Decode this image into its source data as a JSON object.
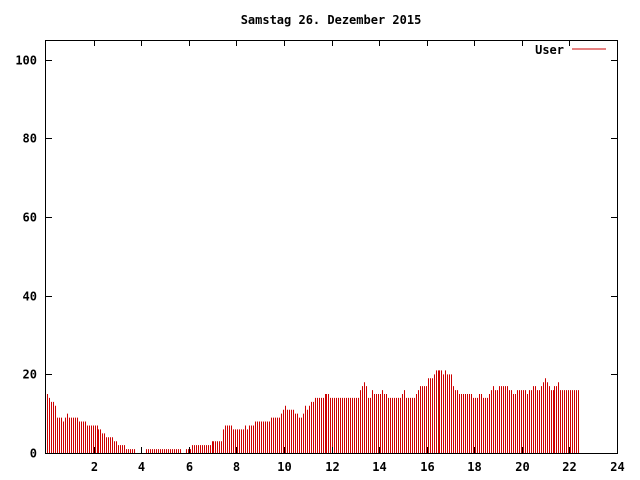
{
  "chart_data": {
    "type": "bar",
    "title": "Samstag 26. Dezember 2015",
    "xlabel": "",
    "ylabel": "",
    "xlim": [
      0,
      24
    ],
    "ylim": [
      0,
      105
    ],
    "x_ticks": [
      2,
      4,
      6,
      8,
      10,
      12,
      14,
      16,
      18,
      20,
      22,
      24
    ],
    "y_ticks": [
      0,
      20,
      40,
      60,
      80,
      100
    ],
    "grid": false,
    "legend_position": "top-right",
    "series": [
      {
        "name": "User",
        "color": "#cc0000",
        "step_hours": 0.08333,
        "values": [
          15,
          14,
          13,
          13,
          12,
          9,
          9,
          9,
          8,
          9,
          10,
          9,
          9,
          9,
          9,
          9,
          8,
          8,
          8,
          8,
          7,
          7,
          7,
          7,
          7,
          7,
          6,
          6,
          5,
          5,
          4,
          4,
          4,
          4,
          3,
          3,
          2,
          2,
          2,
          2,
          1,
          1,
          1,
          1,
          1,
          0,
          0,
          0,
          0,
          0,
          1,
          1,
          1,
          1,
          1,
          1,
          1,
          1,
          1,
          1,
          1,
          1,
          1,
          1,
          1,
          1,
          1,
          1,
          0,
          0,
          1,
          1,
          1,
          2,
          2,
          2,
          2,
          2,
          2,
          2,
          2,
          2,
          2,
          3,
          3,
          3,
          3,
          3,
          3,
          6,
          7,
          7,
          7,
          7,
          6,
          6,
          6,
          6,
          6,
          6,
          7,
          6,
          7,
          7,
          7,
          8,
          8,
          8,
          8,
          8,
          8,
          8,
          8,
          9,
          9,
          9,
          9,
          9,
          10,
          11,
          12,
          11,
          11,
          11,
          11,
          10,
          10,
          9,
          9,
          10,
          12,
          11,
          12,
          13,
          13,
          14,
          14,
          14,
          14,
          14,
          15,
          15,
          15,
          14,
          14,
          14,
          14,
          14,
          14,
          14,
          14,
          14,
          14,
          14,
          14,
          14,
          14,
          14,
          16,
          17,
          18,
          17,
          14,
          14,
          16,
          15,
          15,
          15,
          15,
          16,
          15,
          15,
          14,
          14,
          14,
          14,
          14,
          14,
          14,
          15,
          16,
          14,
          14,
          14,
          14,
          14,
          15,
          16,
          17,
          17,
          17,
          17,
          19,
          19,
          19,
          20,
          21,
          21,
          21,
          21,
          20,
          21,
          20,
          20,
          20,
          17,
          16,
          16,
          15,
          15,
          15,
          15,
          15,
          15,
          15,
          14,
          14,
          14,
          15,
          15,
          14,
          14,
          14,
          15,
          16,
          17,
          16,
          16,
          17,
          17,
          17,
          17,
          17,
          16,
          16,
          15,
          15,
          16,
          16,
          16,
          16,
          16,
          15,
          16,
          16,
          17,
          17,
          16,
          16,
          17,
          18,
          19,
          18,
          17,
          16,
          16,
          17,
          17,
          18,
          16,
          16,
          16,
          16,
          16,
          16,
          16,
          16,
          16,
          16
        ]
      }
    ]
  }
}
